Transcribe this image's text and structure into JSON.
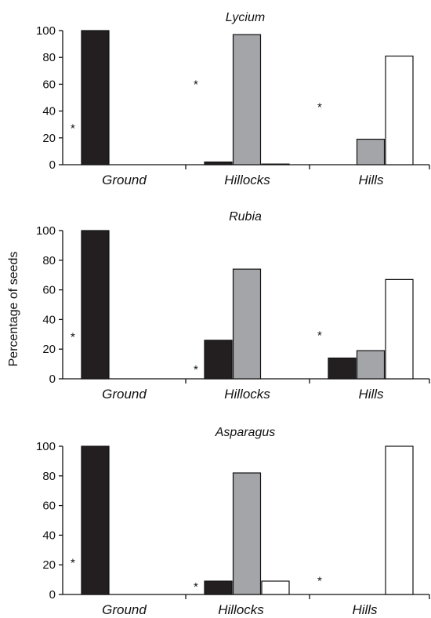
{
  "y_axis_label": "Percentage of seeds",
  "series_colors": [
    "#231f20",
    "#a3a5a8",
    "#ffffff"
  ],
  "chart_data": [
    {
      "type": "bar",
      "title": "Lycium",
      "categories": [
        "Ground",
        "Hillocks",
        "Hills"
      ],
      "series": [
        {
          "values": [
            100,
            2,
            0
          ]
        },
        {
          "values": [
            0,
            97,
            19
          ]
        },
        {
          "values": [
            0,
            0.5,
            81
          ]
        }
      ],
      "ylim": [
        0,
        100
      ],
      "yticks": [
        0,
        20,
        40,
        60,
        80,
        100
      ],
      "asterisks": [
        30,
        63,
        46
      ],
      "annotation": "*"
    },
    {
      "type": "bar",
      "title": "Rubia",
      "categories": [
        "Ground",
        "Hillocks",
        "Hills"
      ],
      "series": [
        {
          "values": [
            100,
            26,
            14
          ]
        },
        {
          "values": [
            0,
            74,
            19
          ]
        },
        {
          "values": [
            0,
            0,
            67
          ]
        }
      ],
      "ylim": [
        0,
        100
      ],
      "yticks": [
        0,
        20,
        40,
        60,
        80,
        100
      ],
      "asterisks": [
        31,
        9,
        32
      ],
      "annotation": "*"
    },
    {
      "type": "bar",
      "title": "Asparagus",
      "categories": [
        "Ground",
        "Hillocks",
        "Hills"
      ],
      "series": [
        {
          "values": [
            100,
            9,
            0
          ]
        },
        {
          "values": [
            0,
            82,
            0
          ]
        },
        {
          "values": [
            0,
            9,
            100
          ]
        }
      ],
      "ylim": [
        0,
        100
      ],
      "yticks": [
        0,
        20,
        40,
        60,
        80,
        100
      ],
      "asterisks": [
        24,
        8,
        12
      ],
      "annotation": "*"
    }
  ]
}
